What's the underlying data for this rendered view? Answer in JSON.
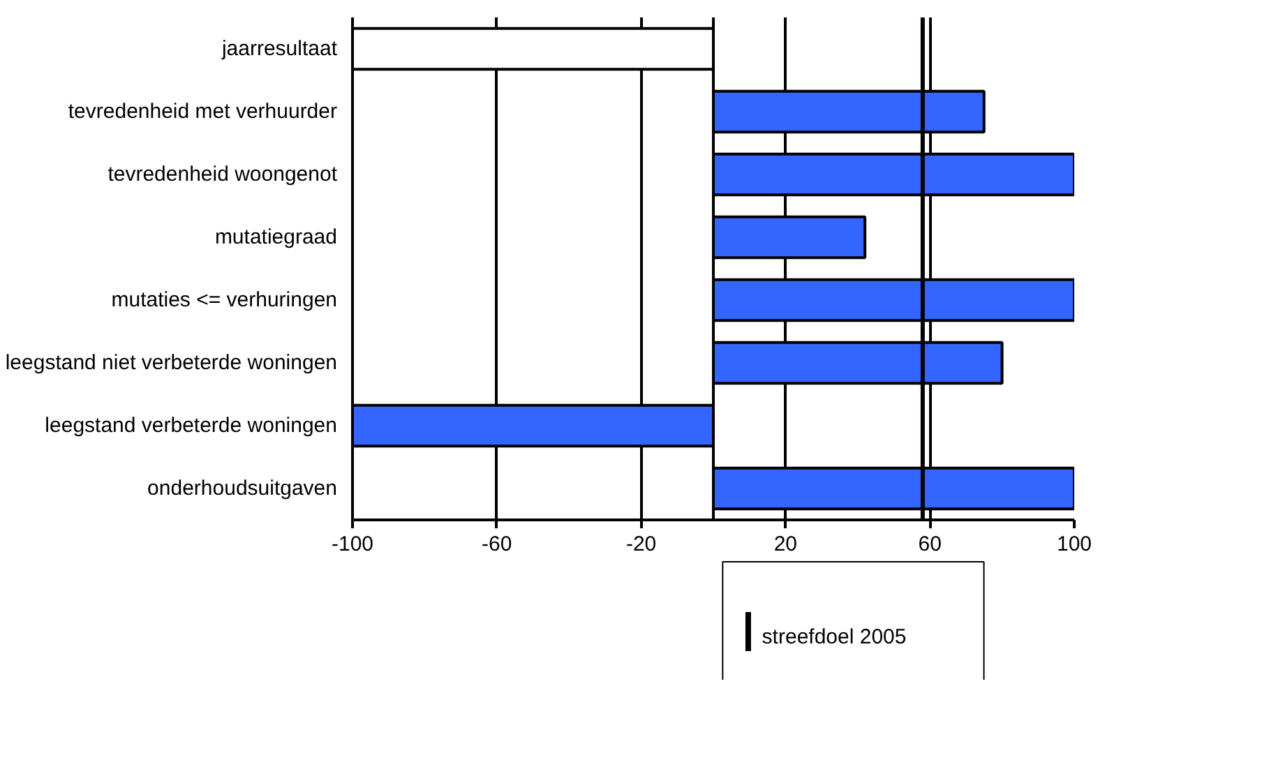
{
  "chart_data": {
    "type": "bar",
    "orientation": "horizontal",
    "categories": [
      "jaarresultaat",
      "tevredenheid met verhuurder",
      "tevredenheid woongenot",
      "mutatiegraad",
      "mutaties <= verhuringen",
      "leegstand niet verbeterde woningen",
      "leegstand verbeterde woningen",
      "onderhoudsuitgaven"
    ],
    "values": [
      -100,
      75,
      100,
      42,
      100,
      80,
      -100,
      100
    ],
    "colors": [
      "#ffffff",
      "#3366ff",
      "#3366ff",
      "#3366ff",
      "#3366ff",
      "#3366ff",
      "#3366ff",
      "#3366ff"
    ],
    "xlim": [
      -100,
      100
    ],
    "xticks": [
      -100,
      -60,
      -20,
      20,
      60,
      100
    ],
    "grid": "x",
    "legend": "bottom",
    "ref_lines": [
      {
        "axis": "x",
        "value": 58,
        "label": "streefdoel 2005",
        "color": "#000000"
      }
    ]
  }
}
